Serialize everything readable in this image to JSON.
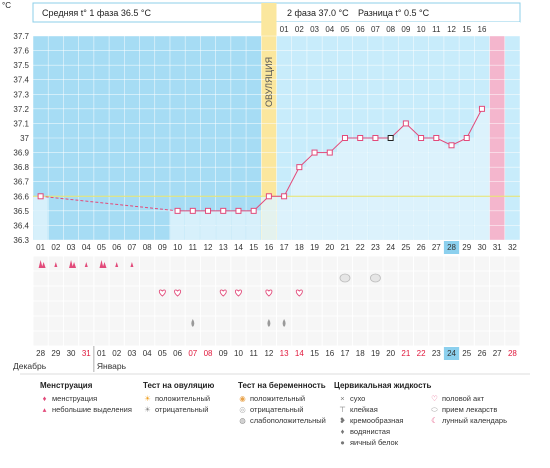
{
  "header": {
    "unit": "°C",
    "phase1": "Средняя t° 1 фаза 36.5 °C",
    "phase2": "2 фаза 37.0 °C",
    "diff": "Разница t° 0.5 °C",
    "ovulation": "ОВУЛЯЦИЯ"
  },
  "colors": {
    "phase1_bg": "#a6dcf4",
    "phase2_bg": "#c8ecfb",
    "ovulation_band": "#fbe79e",
    "menstruation_band": "#f4b6cd",
    "line": "#e24a7a",
    "coverline": "#e8e46a",
    "highlight_day": "#8cd0ee"
  },
  "chart_data": {
    "type": "line",
    "title": "",
    "xlabel": "",
    "ylabel": "°C",
    "ylim": [
      36.3,
      37.7
    ],
    "yticks": [
      "36.3",
      "36.4",
      "36.5",
      "36.6",
      "36.7",
      "36.8",
      "36.9",
      "37",
      "37.1",
      "37.2",
      "37.3",
      "37.4",
      "37.5",
      "37.6",
      "37.7"
    ],
    "coverline": 36.6,
    "ovulation_index": 15,
    "phase2_start_index": 16,
    "menstruation_index": 30,
    "highlight_index": 27,
    "cycle_days": [
      "01",
      "02",
      "03",
      "04",
      "05",
      "06",
      "07",
      "08",
      "09",
      "10",
      "11",
      "12",
      "13",
      "14",
      "15",
      "16",
      "17",
      "18",
      "19",
      "20",
      "21",
      "22",
      "23",
      "24",
      "25",
      "26",
      "27",
      "28",
      "29",
      "30",
      "31",
      "32"
    ],
    "phase2_days": [
      "01",
      "02",
      "03",
      "04",
      "05",
      "06",
      "07",
      "08",
      "09",
      "10",
      "11",
      "12",
      "15",
      "16"
    ],
    "dates": [
      "28",
      "29",
      "30",
      "31",
      "01",
      "02",
      "03",
      "04",
      "05",
      "06",
      "07",
      "08",
      "09",
      "10",
      "11",
      "12",
      "13",
      "14",
      "15",
      "16",
      "17",
      "18",
      "19",
      "20",
      "21",
      "22",
      "23",
      "24",
      "25",
      "26",
      "27",
      "28"
    ],
    "date_red_indices": [
      3,
      10,
      11,
      16,
      17,
      24,
      25,
      31
    ],
    "months": [
      "Декабрь",
      "Январь"
    ],
    "temps": [
      36.6,
      null,
      null,
      null,
      null,
      null,
      null,
      null,
      null,
      36.5,
      36.5,
      36.5,
      36.5,
      36.5,
      36.5,
      36.6,
      36.6,
      36.8,
      36.9,
      36.9,
      37.0,
      37.0,
      37.0,
      37.0,
      37.1,
      37.0,
      37.0,
      36.95,
      37.0,
      37.2,
      null,
      null
    ],
    "dashed_until_index": 9,
    "square_marker_index": 23,
    "heart_marker_index": 28,
    "markers": {
      "menstruation_heavy": [
        0,
        2,
        4
      ],
      "menstruation_light": [
        1,
        3,
        5,
        6
      ],
      "sex": [
        8,
        9,
        12,
        13,
        15,
        17
      ],
      "medicine": [
        20,
        22
      ],
      "watery_drop": [
        10,
        15,
        16
      ]
    }
  },
  "legend": {
    "menstruation": {
      "title": "Менструация",
      "items": [
        "менструация",
        "небольшие выделения"
      ]
    },
    "ovulation_test": {
      "title": "Тест на овуляцию",
      "items": [
        "положительный",
        "отрицательный"
      ]
    },
    "pregnancy_test": {
      "title": "Тест на беременность",
      "items": [
        "положительный",
        "отрицательный",
        "слабоположительный"
      ]
    },
    "cervical": {
      "title": "Цервикальная жидкость",
      "items": [
        "сухо",
        "клейкая",
        "кремообразная",
        "водянистая",
        "яичный белок"
      ]
    },
    "other": {
      "items": [
        "половой акт",
        "прием лекарств",
        "лунный календарь"
      ]
    }
  }
}
